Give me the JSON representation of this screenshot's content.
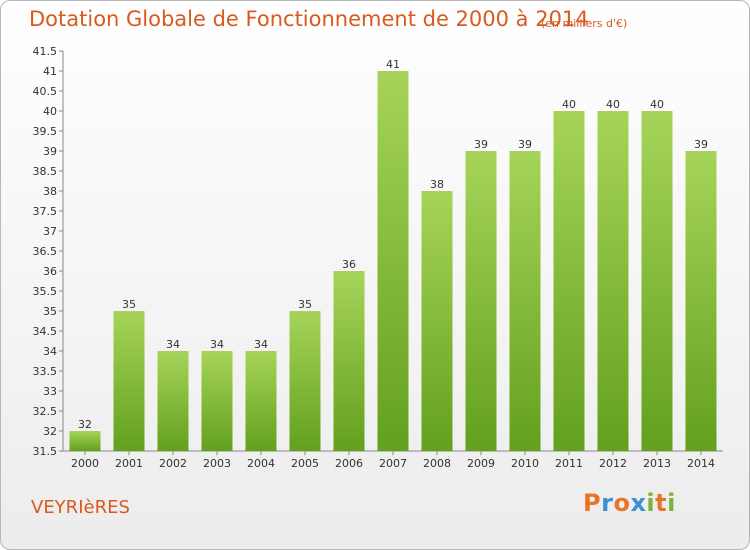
{
  "header": {
    "title": "Dotation Globale de Fonctionnement de 2000 à 2014",
    "subtitle": "(en milliers d'€)"
  },
  "footer": {
    "commune": "VEYRIèRES",
    "logo_text": "Proxiti"
  },
  "colors": {
    "title": "#d9591e",
    "bar_top": "#a6d45a",
    "bar_bottom": "#63a01e",
    "logo_letters": [
      "#e8742a",
      "#3e8fd4",
      "#e8742a",
      "#3e8fd4",
      "#7cb33a",
      "#e8742a",
      "#7cb33a"
    ]
  },
  "chart_data": {
    "type": "bar",
    "title": "Dotation Globale de Fonctionnement de 2000 à 2014",
    "subtitle": "(en milliers d'€)",
    "categories": [
      "2000",
      "2001",
      "2002",
      "2003",
      "2004",
      "2005",
      "2006",
      "2007",
      "2008",
      "2009",
      "2010",
      "2011",
      "2012",
      "2013",
      "2014"
    ],
    "values": [
      32,
      35,
      34,
      34,
      34,
      35,
      36,
      41,
      38,
      39,
      39,
      40,
      40,
      40,
      39
    ],
    "data_labels": [
      "32",
      "35",
      "34",
      "34",
      "34",
      "35",
      "36",
      "41",
      "38",
      "39",
      "39",
      "40",
      "40",
      "40",
      "39"
    ],
    "ylim": [
      31.5,
      41.5
    ],
    "yticks": [
      "31.5",
      "32",
      "32.5",
      "33",
      "33.5",
      "34",
      "34.5",
      "35",
      "35.5",
      "36",
      "36.5",
      "37",
      "37.5",
      "38",
      "38.5",
      "39",
      "39.5",
      "40",
      "40.5",
      "41",
      "41.5"
    ],
    "grid": false,
    "legend": "none"
  }
}
